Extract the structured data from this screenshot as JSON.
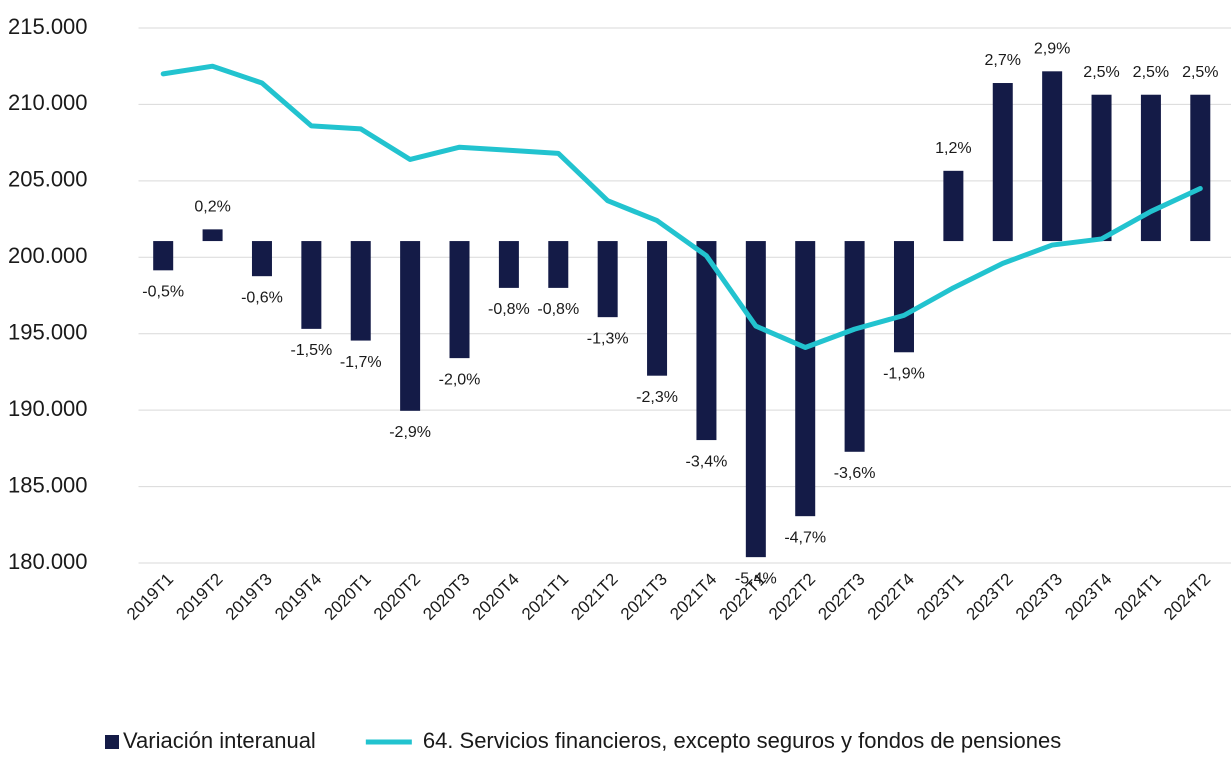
{
  "chart_data": {
    "type": "combo",
    "categories": [
      "2019T1",
      "2019T2",
      "2019T3",
      "2019T4",
      "2020T1",
      "2020T2",
      "2020T3",
      "2020T4",
      "2021T1",
      "2021T2",
      "2021T3",
      "2021T4",
      "2022T1",
      "2022T2",
      "2022T3",
      "2022T4",
      "2023T1",
      "2023T2",
      "2023T3",
      "2023T4",
      "2024T1",
      "2024T2"
    ],
    "series": [
      {
        "name": "Variación interanual",
        "type": "bar",
        "axis": "y2",
        "color": "#141b47",
        "values": [
          -0.5,
          0.2,
          -0.6,
          -1.5,
          -1.7,
          -2.9,
          -2.0,
          -0.8,
          -0.8,
          -1.3,
          -2.3,
          -3.4,
          -5.4,
          -4.7,
          -3.6,
          -1.9,
          1.2,
          2.7,
          2.9,
          2.5,
          2.5,
          2.5
        ],
        "value_labels": [
          "-0,5%",
          "0,2%",
          "-0,6%",
          "-1,5%",
          "-1,7%",
          "-2,9%",
          "-2,0%",
          "-0,8%",
          "-0,8%",
          "-1,3%",
          "-2,3%",
          "-3,4%",
          "-5,4%",
          "-4,7%",
          "-3,6%",
          "-1,9%",
          "1,2%",
          "2,7%",
          "2,9%",
          "2,5%",
          "2,5%",
          "2,5%"
        ]
      },
      {
        "name": "64. Servicios financieros, excepto seguros y fondos de pensiones",
        "type": "line",
        "color": "#22c3cf",
        "values": [
          212000,
          212500,
          211400,
          208600,
          208400,
          206400,
          207200,
          207000,
          206800,
          203700,
          202400,
          200100,
          195500,
          194100,
          195300,
          196200,
          198000,
          199600,
          200800,
          201200,
          203000,
          204500
        ]
      }
    ],
    "ylim": [
      180000,
      215000
    ],
    "yticks": [
      {
        "value": 180000,
        "label": "180.000"
      },
      {
        "value": 185000,
        "label": "185.000"
      },
      {
        "value": 190000,
        "label": "190.000"
      },
      {
        "value": 195000,
        "label": "195.000"
      },
      {
        "value": 200000,
        "label": "200.000"
      },
      {
        "value": 205000,
        "label": "205.000"
      },
      {
        "value": 210000,
        "label": "210.000"
      },
      {
        "value": 215000,
        "label": "215.000"
      }
    ],
    "y2lim": [
      -5.5,
      3.64
    ],
    "grid": true,
    "legend": "bottom"
  }
}
